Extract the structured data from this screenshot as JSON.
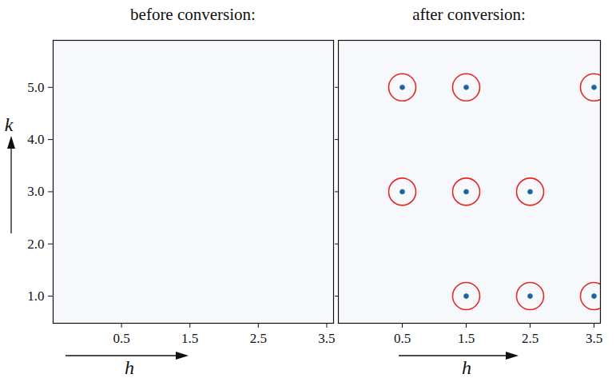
{
  "chart_data": [
    {
      "type": "scatter",
      "title": "before conversion:",
      "x_label": "h",
      "y_label": "k",
      "xlim": [
        -0.5,
        3.6
      ],
      "ylim": [
        0.48,
        5.9
      ],
      "xticks": [
        0.5,
        1.5,
        2.5,
        3.5
      ],
      "yticks": [
        {
          "value": 1,
          "label": "1.0"
        },
        {
          "value": 2,
          "label": "2.0"
        },
        {
          "value": 3,
          "label": "3.0"
        },
        {
          "value": 4,
          "label": "4.0"
        },
        {
          "value": 5,
          "label": "5.0"
        }
      ],
      "x": [],
      "y": [],
      "color": "#e32b22",
      "marker": "circle"
    },
    {
      "type": "scatter",
      "title": "after conversion:",
      "x_label": "h",
      "xlim": [
        -0.5,
        3.6
      ],
      "ylim": [
        0.48,
        5.9
      ],
      "xticks": [
        0.5,
        1.5,
        2.5,
        3.5
      ],
      "yticks": [
        {
          "value": 1,
          "label": "1.0"
        },
        {
          "value": 2,
          "label": "2.0"
        },
        {
          "value": 3,
          "label": "3.0"
        },
        {
          "value": 4,
          "label": "4.0"
        },
        {
          "value": 5,
          "label": "5.0"
        }
      ],
      "tick_labels": "x",
      "x": [
        0.5,
        1.5,
        3.5,
        0.5,
        1.5,
        2.5,
        1.5,
        2.5,
        3.5
      ],
      "y": [
        5,
        5,
        5,
        3,
        3,
        3,
        1,
        1,
        1
      ],
      "color": "#e32b22",
      "marker": "circle"
    }
  ]
}
